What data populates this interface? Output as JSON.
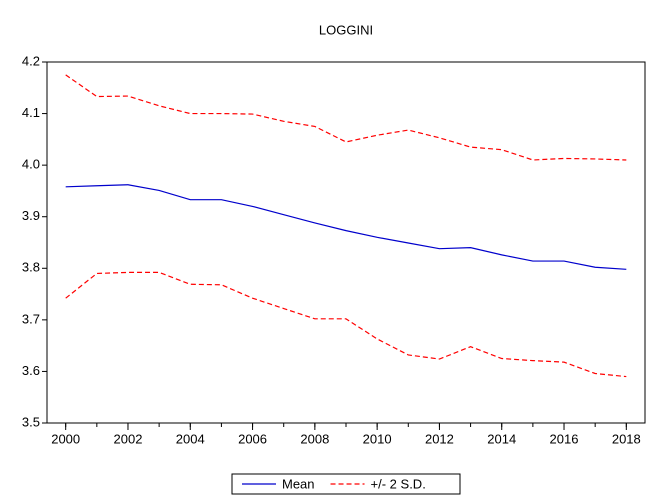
{
  "chart_data": {
    "type": "line",
    "title": "LOGGINI",
    "x": [
      2000,
      2001,
      2002,
      2003,
      2004,
      2005,
      2006,
      2007,
      2008,
      2009,
      2010,
      2011,
      2012,
      2013,
      2014,
      2015,
      2016,
      2017,
      2018
    ],
    "series": [
      {
        "name": "Mean",
        "color": "#0000cc",
        "dash": false,
        "values": [
          3.958,
          3.96,
          3.962,
          3.951,
          3.933,
          3.933,
          3.92,
          3.904,
          3.888,
          3.873,
          3.86,
          3.849,
          3.838,
          3.84,
          3.826,
          3.814,
          3.814,
          3.802,
          3.798
        ]
      },
      {
        "name": "+/- 2 S.D.",
        "color": "#ff0000",
        "dash": true,
        "values": [
          4.175,
          4.133,
          4.134,
          4.115,
          4.1,
          4.1,
          4.099,
          4.085,
          4.075,
          4.045,
          4.058,
          4.068,
          4.053,
          4.035,
          4.03,
          4.01,
          4.013,
          4.012,
          4.01
        ],
        "lower": [
          3.742,
          3.79,
          3.792,
          3.792,
          3.769,
          3.768,
          3.742,
          3.722,
          3.702,
          3.702,
          3.663,
          3.632,
          3.624,
          3.648,
          3.625,
          3.621,
          3.618,
          3.596,
          3.59
        ]
      }
    ],
    "xlim": [
      1999.4,
      2018.6
    ],
    "xticks": [
      2000,
      2002,
      2004,
      2006,
      2008,
      2010,
      2012,
      2014,
      2016,
      2018
    ],
    "ylim": [
      3.5,
      4.2
    ],
    "yticks": [
      3.5,
      3.6,
      3.7,
      3.8,
      3.9,
      {
        "value": 4.0,
        "label": "4.0"
      },
      4.1,
      4.2
    ],
    "legend": "bottom"
  }
}
